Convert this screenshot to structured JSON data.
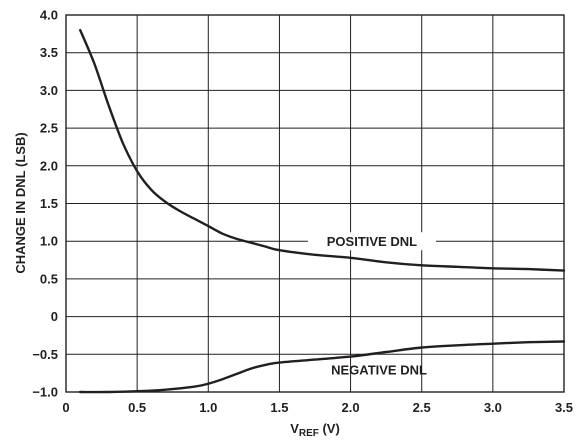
{
  "chart_data": {
    "type": "line",
    "xlabel": {
      "main": "V",
      "sub": "REF",
      "unit": " (V)"
    },
    "ylabel": "CHANGE IN DNL (LSB)",
    "xlim": [
      0,
      3.5
    ],
    "ylim": [
      -1.0,
      4.0
    ],
    "x_ticks": [
      "0",
      "0.5",
      "1.0",
      "1.5",
      "2.0",
      "2.5",
      "3.0",
      "3.5"
    ],
    "y_ticks": [
      "4.0",
      "3.5",
      "3.0",
      "2.5",
      "2.0",
      "1.5",
      "1.0",
      "0.5",
      "0",
      "−0.5",
      "−1.0"
    ],
    "grid": true,
    "series": [
      {
        "name": "POSITIVE DNL",
        "x": [
          0.1,
          0.2,
          0.3,
          0.4,
          0.5,
          0.6,
          0.7,
          0.8,
          0.9,
          1.0,
          1.1,
          1.2,
          1.3,
          1.4,
          1.5,
          1.75,
          2.0,
          2.25,
          2.5,
          2.75,
          3.0,
          3.25,
          3.5
        ],
        "values": [
          3.8,
          3.35,
          2.8,
          2.3,
          1.93,
          1.68,
          1.52,
          1.4,
          1.3,
          1.2,
          1.1,
          1.03,
          0.98,
          0.93,
          0.88,
          0.82,
          0.78,
          0.72,
          0.68,
          0.66,
          0.64,
          0.63,
          0.61
        ]
      },
      {
        "name": "NEGATIVE DNL",
        "x": [
          0.1,
          0.3,
          0.5,
          0.7,
          0.9,
          1.0,
          1.1,
          1.2,
          1.3,
          1.4,
          1.5,
          1.75,
          2.0,
          2.25,
          2.5,
          2.75,
          3.0,
          3.25,
          3.5
        ],
        "values": [
          -1.0,
          -1.0,
          -0.99,
          -0.97,
          -0.93,
          -0.89,
          -0.83,
          -0.76,
          -0.69,
          -0.64,
          -0.61,
          -0.57,
          -0.53,
          -0.47,
          -0.41,
          -0.38,
          -0.36,
          -0.34,
          -0.33
        ]
      }
    ]
  }
}
